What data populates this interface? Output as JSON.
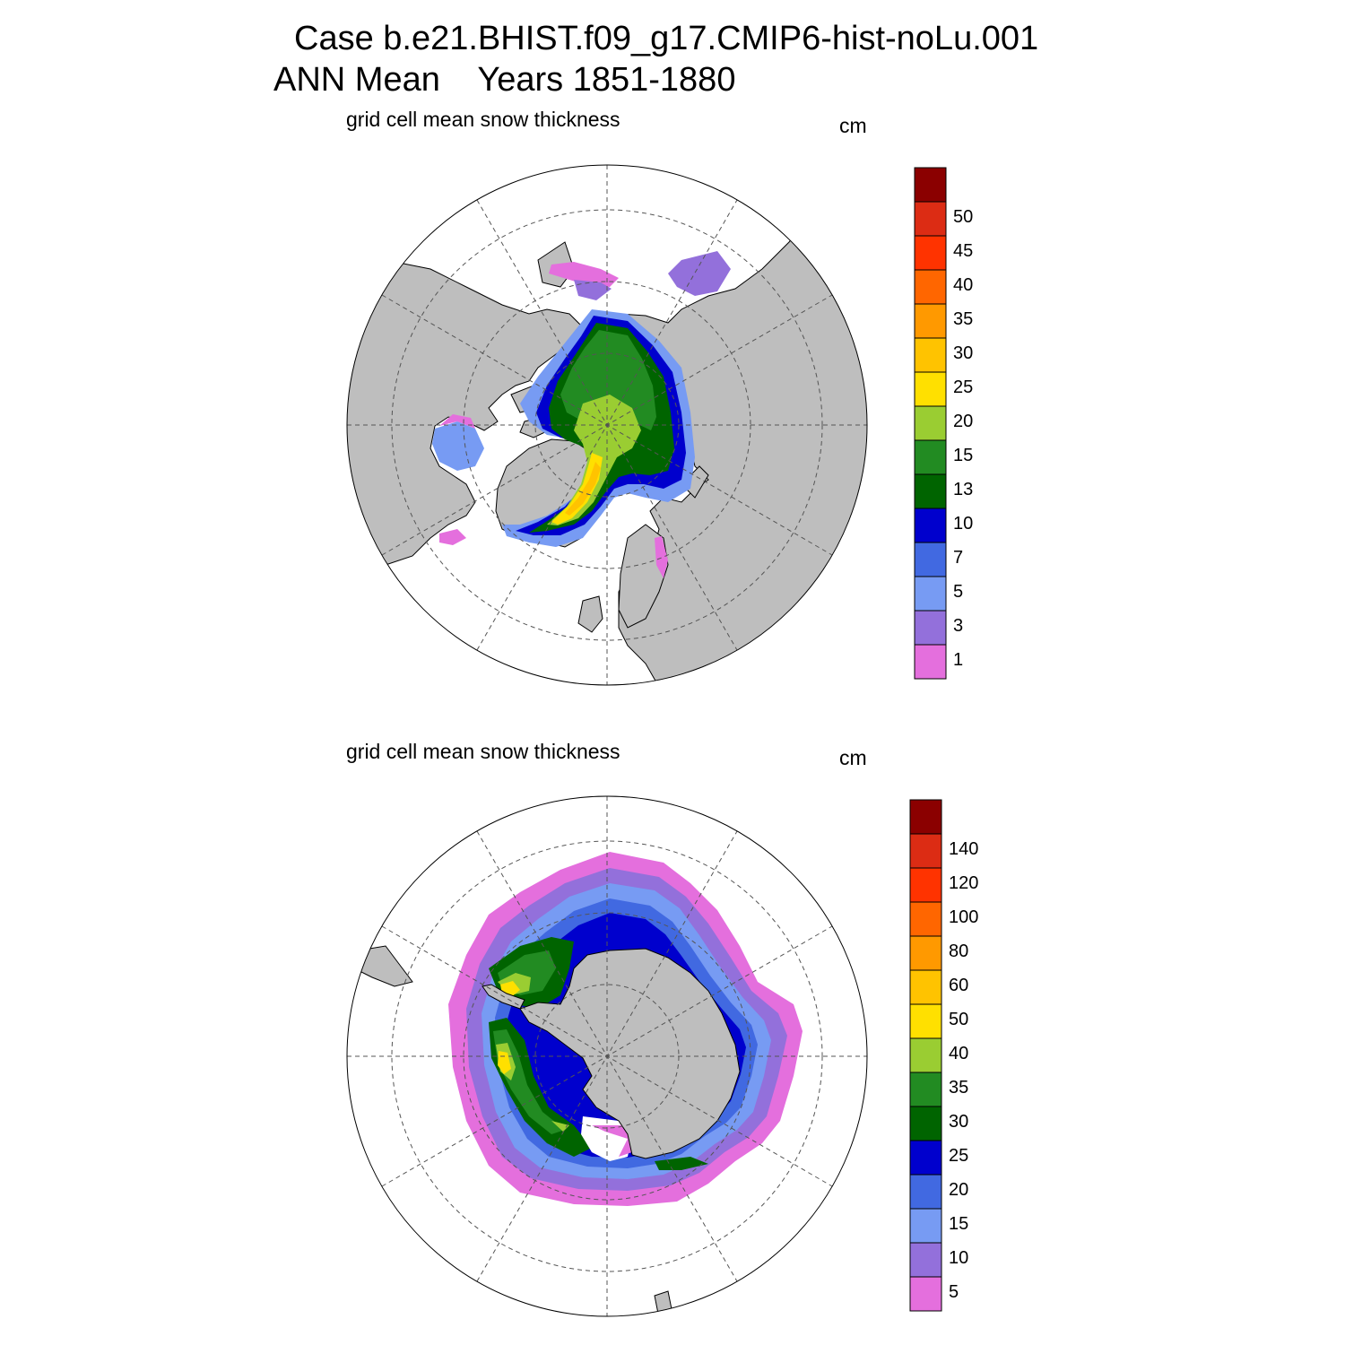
{
  "title": {
    "line1": "Case b.e21.BHIST.f09_g17.CMIP6-hist-noLu.001",
    "line2": "ANN Mean    Years 1851-1880"
  },
  "colors": {
    "land": "#bebebe",
    "ocean": "#ffffff",
    "grid": "#555555",
    "palette": [
      "#e46fdd",
      "#9370db",
      "#779bf3",
      "#4169e1",
      "#0000cd",
      "#006400",
      "#228b22",
      "#9acd32",
      "#ffe000",
      "#ffc300",
      "#ff9900",
      "#ff6600",
      "#ff3300",
      "#dc2c14",
      "#8b0000"
    ]
  },
  "panels": [
    {
      "id": "arctic",
      "label": "grid cell mean snow thickness",
      "units": "cm",
      "hemisphere": "north",
      "colorbar_levels": [
        "1",
        "3",
        "5",
        "7",
        "10",
        "13",
        "15",
        "20",
        "25",
        "30",
        "35",
        "40",
        "45",
        "50"
      ]
    },
    {
      "id": "antarctic",
      "label": "grid cell mean snow thickness",
      "units": "cm",
      "hemisphere": "south",
      "colorbar_levels": [
        "5",
        "10",
        "15",
        "20",
        "25",
        "30",
        "35",
        "40",
        "50",
        "60",
        "80",
        "100",
        "120",
        "140"
      ]
    }
  ]
}
